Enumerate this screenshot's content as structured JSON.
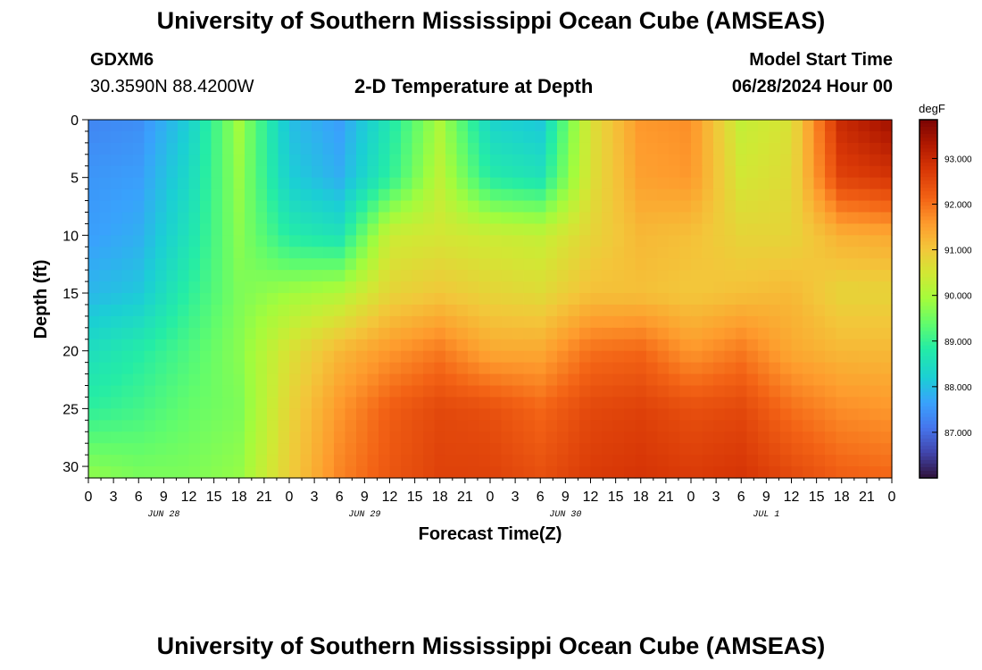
{
  "header": {
    "title": "University of Southern Mississippi Ocean Cube (AMSEAS)",
    "station": "GDXM6",
    "coords": "30.3590N  88.4200W",
    "subtitle": "2-D Temperature at Depth",
    "model_start_label": "Model Start Time",
    "model_start_value": "06/28/2024 Hour 00"
  },
  "footer": {
    "title": "University of Southern Mississippi Ocean Cube (AMSEAS)"
  },
  "chart_data": {
    "type": "heatmap",
    "xlabel": "Forecast Time(Z)",
    "ylabel": "Depth (ft)",
    "x_ticks": [
      "0",
      "3",
      "6",
      "9",
      "12",
      "15",
      "18",
      "21",
      "0",
      "3",
      "6",
      "9",
      "12",
      "15",
      "18",
      "21",
      "0",
      "3",
      "6",
      "9",
      "12",
      "15",
      "18",
      "21",
      "0",
      "3",
      "6",
      "9",
      "12",
      "15",
      "18",
      "21",
      "0"
    ],
    "x_range_hours": [
      0,
      96
    ],
    "day_labels": [
      {
        "label": "JUN 28",
        "hour": 9
      },
      {
        "label": "JUN 29",
        "hour": 33
      },
      {
        "label": "JUN 30",
        "hour": 57
      },
      {
        "label": "JUL 1",
        "hour": 81
      }
    ],
    "y_ticks": [
      0,
      5,
      10,
      15,
      20,
      25,
      30
    ],
    "y_range_ft": [
      0,
      31
    ],
    "colorbar": {
      "unit": "degF",
      "min": 86.0,
      "max": 93.85,
      "ticks": [
        93.0,
        92.0,
        91.0,
        90.0,
        89.0,
        88.0,
        87.0
      ],
      "tick_labels": [
        "93.000",
        "92.000",
        "91.000",
        "90.000",
        "89.000",
        "88.000",
        "87.000"
      ]
    },
    "grid": {
      "hours": [
        0,
        6,
        12,
        18,
        24,
        30,
        36,
        42,
        48,
        54,
        60,
        66,
        72,
        78,
        84,
        90,
        96
      ],
      "depths": [
        0,
        5,
        10,
        15,
        20,
        25,
        31
      ],
      "values": [
        [
          87.3,
          87.4,
          88.2,
          89.9,
          88.0,
          87.6,
          88.7,
          90.0,
          88.3,
          88.1,
          90.6,
          91.6,
          91.7,
          90.3,
          90.6,
          93.0,
          93.5
        ],
        [
          87.5,
          87.6,
          88.4,
          89.8,
          88.2,
          87.8,
          88.9,
          90.2,
          88.8,
          88.6,
          90.6,
          91.5,
          91.6,
          90.5,
          90.7,
          92.6,
          92.8
        ],
        [
          87.6,
          87.8,
          88.6,
          89.7,
          88.8,
          88.6,
          90.4,
          90.5,
          90.4,
          90.3,
          90.8,
          91.2,
          91.1,
          90.8,
          90.8,
          91.3,
          91.4
        ],
        [
          87.9,
          88.1,
          88.9,
          89.6,
          89.9,
          90.1,
          90.8,
          91.0,
          90.8,
          90.7,
          91.1,
          91.1,
          91.0,
          91.1,
          91.2,
          90.8,
          90.8
        ],
        [
          88.5,
          88.8,
          89.2,
          89.7,
          90.6,
          91.2,
          91.6,
          91.9,
          91.4,
          91.4,
          92.0,
          92.1,
          91.6,
          91.9,
          91.4,
          91.2,
          91.2
        ],
        [
          88.9,
          89.1,
          89.4,
          89.6,
          90.8,
          91.6,
          92.2,
          92.5,
          92.4,
          92.1,
          92.5,
          92.6,
          92.4,
          92.5,
          92.0,
          91.7,
          91.6
        ],
        [
          89.8,
          89.6,
          89.6,
          89.8,
          90.9,
          91.8,
          92.3,
          92.6,
          92.6,
          92.4,
          92.7,
          92.8,
          92.7,
          92.8,
          92.5,
          92.2,
          92.1
        ]
      ]
    }
  }
}
